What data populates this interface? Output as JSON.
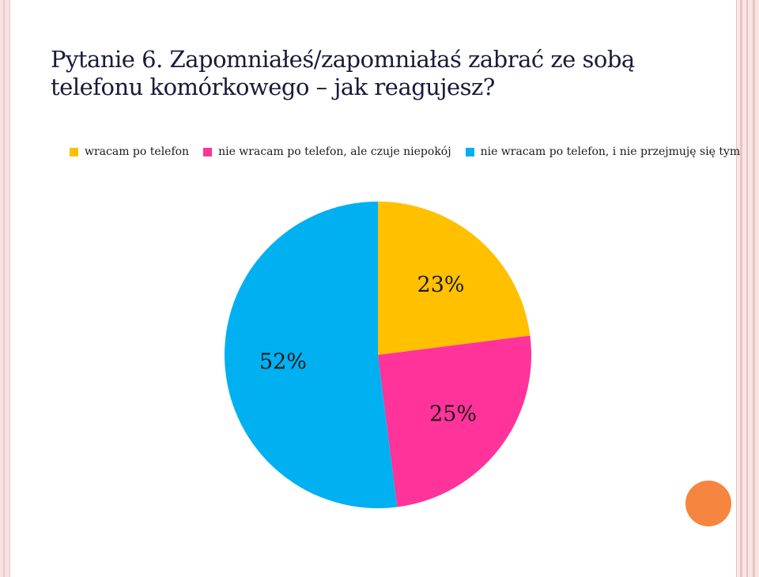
{
  "slide": {
    "title": "Pytanie 6. Zapomniałeś/zapomniałaś zabrać ze sobą telefonu komórkowego – jak reagujesz?"
  },
  "chart_data": {
    "type": "pie",
    "categories": [
      "wracam po telefon",
      "nie wracam po telefon, ale czuje niepokój",
      "nie wracam po telefon, i nie przejmuję się tym"
    ],
    "values": [
      23,
      25,
      52
    ],
    "labels": [
      "23%",
      "25%",
      "52%"
    ],
    "colors": [
      "#ffc000",
      "#ff3399",
      "#00b0f0"
    ],
    "legend_position": "top"
  }
}
